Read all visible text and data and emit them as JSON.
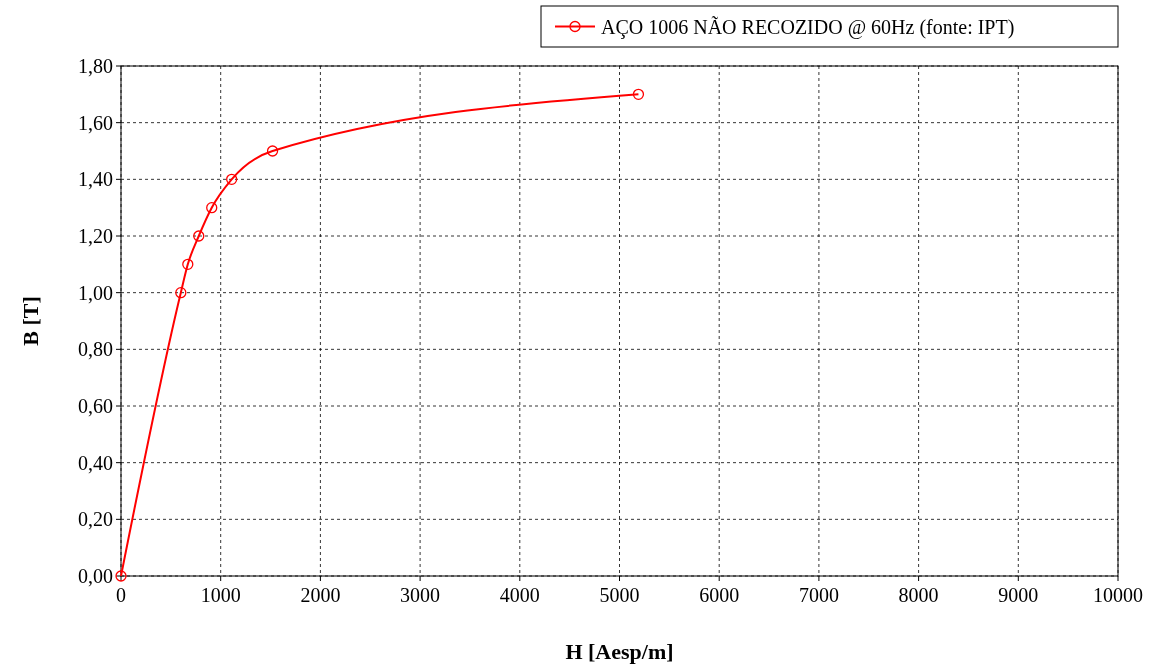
{
  "chart_data": {
    "type": "line",
    "xlabel": "H [Aesp/m]",
    "ylabel": "B [T]",
    "x": [
      0,
      600,
      670,
      780,
      910,
      1110,
      1520,
      5190
    ],
    "series": [
      {
        "name": "AÇO 1006 NÃO RECOZIDO @ 60Hz (fonte: IPT)",
        "color": "#ff0000",
        "values": [
          0,
          1.0,
          1.1,
          1.2,
          1.3,
          1.4,
          1.5,
          1.7
        ]
      }
    ],
    "xlim": [
      0,
      10000
    ],
    "xticks": [
      0,
      1000,
      2000,
      3000,
      4000,
      5000,
      6000,
      7000,
      8000,
      9000,
      10000
    ],
    "ylim": [
      0,
      1.8
    ],
    "yticks": [
      {
        "value": 0,
        "label": "0,00"
      },
      {
        "value": 0.2,
        "label": "0,20"
      },
      {
        "value": 0.4,
        "label": "0,40"
      },
      {
        "value": 0.6,
        "label": "0,60"
      },
      {
        "value": 0.8,
        "label": "0,80"
      },
      {
        "value": 1.0,
        "label": "1,00"
      },
      {
        "value": 1.2,
        "label": "1,20"
      },
      {
        "value": 1.4,
        "label": "1,40"
      },
      {
        "value": 1.6,
        "label": "1,60"
      },
      {
        "value": 1.8,
        "label": "1,80"
      }
    ],
    "grid": true,
    "legend": "top right",
    "marker": "circle",
    "line_style": "solid"
  }
}
